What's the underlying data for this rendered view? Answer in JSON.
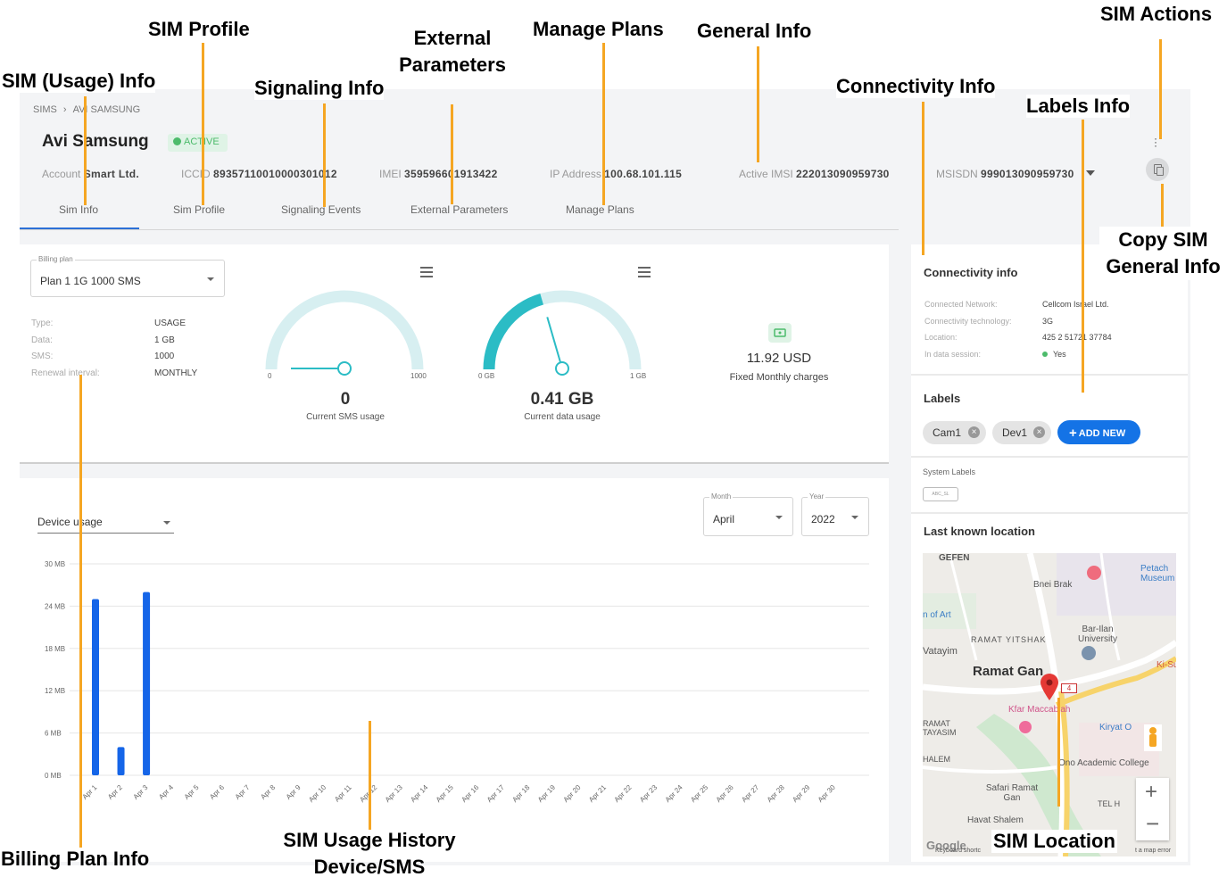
{
  "breadcrumb": {
    "root": "SIMS",
    "separator": "›",
    "current": "AVI SAMSUNG"
  },
  "sim": {
    "name": "Avi Samsung",
    "status": "ACTIVE",
    "account_label": "Account",
    "account": "Smart Ltd.",
    "iccid_label": "ICCID",
    "iccid": "89357110010000301012",
    "imei_label": "IMEI",
    "imei": "359596601913422",
    "ip_label": "IP Address",
    "ip": "100.68.101.115",
    "imsi_label": "Active IMSI",
    "imsi": "222013090959730",
    "msisdn_label": "MSISDN",
    "msisdn": "999013090959730"
  },
  "tabs": [
    "Sim Info",
    "Sim Profile",
    "Signaling Events",
    "External Parameters",
    "Manage Plans"
  ],
  "billing": {
    "select_label": "Billing plan",
    "plan": "Plan 1 1G 1000 SMS",
    "rows": [
      {
        "k": "Type:",
        "v": "USAGE"
      },
      {
        "k": "Data:",
        "v": "1 GB"
      },
      {
        "k": "SMS:",
        "v": "1000"
      },
      {
        "k": "Renewal interval:",
        "v": "MONTHLY"
      }
    ]
  },
  "sms_gauge": {
    "min": "0",
    "max": "1000",
    "value": "0",
    "caption": "Current SMS usage",
    "fraction": 0.0
  },
  "data_gauge": {
    "min": "0 GB",
    "max": "1 GB",
    "value": "0.41 GB",
    "caption": "Current data usage",
    "fraction": 0.41
  },
  "charges": {
    "amount": "11.92 USD",
    "caption": "Fixed Monthly charges"
  },
  "usage": {
    "selector": "Device usage",
    "month_label": "Month",
    "month": "April",
    "year_label": "Year",
    "year": "2022"
  },
  "chart_data": {
    "type": "bar",
    "title": "",
    "xlabel": "",
    "ylabel": "",
    "yticks": [
      "0 MB",
      "6 MB",
      "12 MB",
      "18 MB",
      "24 MB",
      "30 MB"
    ],
    "ylim": [
      0,
      30
    ],
    "categories": [
      "Apr 1",
      "Apr 2",
      "Apr 3",
      "Apr 4",
      "Apr 5",
      "Apr 6",
      "Apr 7",
      "Apr 8",
      "Apr 9",
      "Apr 10",
      "Apr 11",
      "Apr 12",
      "Apr 13",
      "Apr 14",
      "Apr 15",
      "Apr 16",
      "Apr 17",
      "Apr 18",
      "Apr 19",
      "Apr 20",
      "Apr 21",
      "Apr 22",
      "Apr 23",
      "Apr 24",
      "Apr 25",
      "Apr 26",
      "Apr 27",
      "Apr 28",
      "Apr 29",
      "Apr 30"
    ],
    "values": [
      25,
      4,
      26,
      0,
      0,
      0,
      0,
      0,
      0,
      0,
      0,
      0,
      0,
      0,
      0,
      0,
      0,
      0,
      0,
      0,
      0,
      0,
      0,
      0,
      0,
      0,
      0,
      0,
      0,
      0
    ],
    "color": "#1565e8",
    "grid": true
  },
  "connectivity": {
    "title": "Connectivity info",
    "rows": [
      {
        "k": "Connected Network:",
        "v": "Cellcom Israel Ltd."
      },
      {
        "k": "Connectivity technology:",
        "v": "3G"
      },
      {
        "k": "Location:",
        "v": "425 2 51721 37784"
      },
      {
        "k": "In data session:",
        "v": "Yes"
      }
    ]
  },
  "labels": {
    "title": "Labels",
    "chips": [
      "Cam1",
      "Dev1"
    ],
    "add_new": "ADD NEW",
    "system_title": "System Labels",
    "system_chip": "ABC_SL"
  },
  "location": {
    "title": "Last known location",
    "places": [
      "GEFEN",
      "Bnei Brak",
      "Petach Museum",
      "n of Art",
      "Bar-Ilan University",
      "RAMAT YITSHAK",
      "Vatayim",
      "Ramat Gan",
      "Ki-Su",
      "Kfar Maccabiah",
      "Kiryat O",
      "RAMAT TAYASIM",
      "HALEM",
      "Ono Academic College",
      "Safari Ramat Gan",
      "TEL H",
      "Havat Shalem",
      "Google",
      "Keyboard shortc",
      "t a map error"
    ],
    "road": "4"
  },
  "annotations": {
    "sim_profile": "SIM Profile",
    "external": "External Parameters",
    "manage_plans": "Manage Plans",
    "general_info": "General Info",
    "sim_actions": "SIM Actions",
    "usage_info": "SIM (Usage) Info",
    "signaling": "Signaling Info",
    "connectivity": "Connectivity Info",
    "labels_info": "Labels Info",
    "copy_sim": "Copy SIM General Info",
    "billing_info": "Billing Plan Info",
    "history": "SIM Usage History Device/SMS",
    "location": "SIM Location"
  },
  "colors": {
    "accent": "#2b6fd6",
    "bar": "#1565e8",
    "gauge_bg": "#d7eff1",
    "gauge_fill": "#2bbcc5",
    "annotation_line": "#f5a623",
    "active_green": "#4cbb6b"
  }
}
